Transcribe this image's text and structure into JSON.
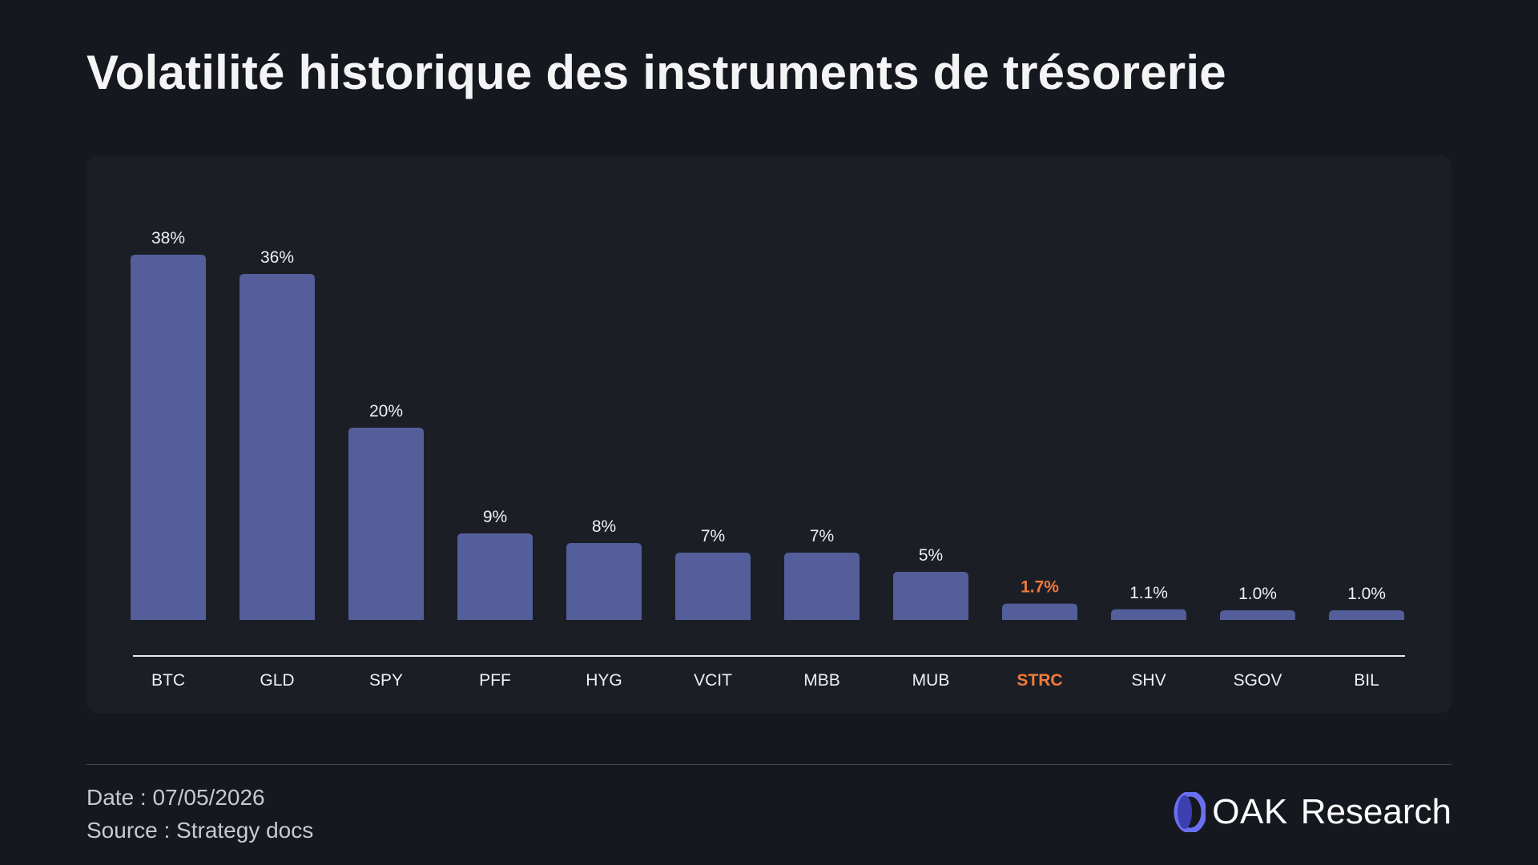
{
  "title": "Volatilité historique des instruments de trésorerie",
  "footer": {
    "date": "Date : 07/05/2026",
    "source": "Source : Strategy docs"
  },
  "logo": {
    "icon": "oak-ring-icon",
    "brand": "OAK",
    "name": "Research"
  },
  "colors": {
    "background": "#16181f",
    "panel": "#1c1e26",
    "bar": "#535e9a",
    "highlight": "#f07a3a",
    "axis": "#e8e8ea",
    "label": "#f0f0f2"
  },
  "chart_data": {
    "type": "bar",
    "title": "Volatilité historique des instruments de trésorerie",
    "xlabel": "",
    "ylabel": "",
    "ylim": [
      0,
      38
    ],
    "grid": false,
    "categories": [
      "BTC",
      "GLD",
      "SPY",
      "PFF",
      "HYG",
      "VCIT",
      "MBB",
      "MUB",
      "STRC",
      "SHV",
      "SGOV",
      "BIL"
    ],
    "values": [
      38,
      36,
      20,
      9,
      8,
      7,
      7,
      5,
      1.7,
      1.1,
      1.0,
      1.0
    ],
    "data_labels": [
      "38%",
      "36%",
      "20%",
      "9%",
      "8%",
      "7%",
      "7%",
      "5%",
      "1.7%",
      "1.1%",
      "1.0%",
      "1.0%"
    ],
    "highlighted_category": "STRC"
  }
}
